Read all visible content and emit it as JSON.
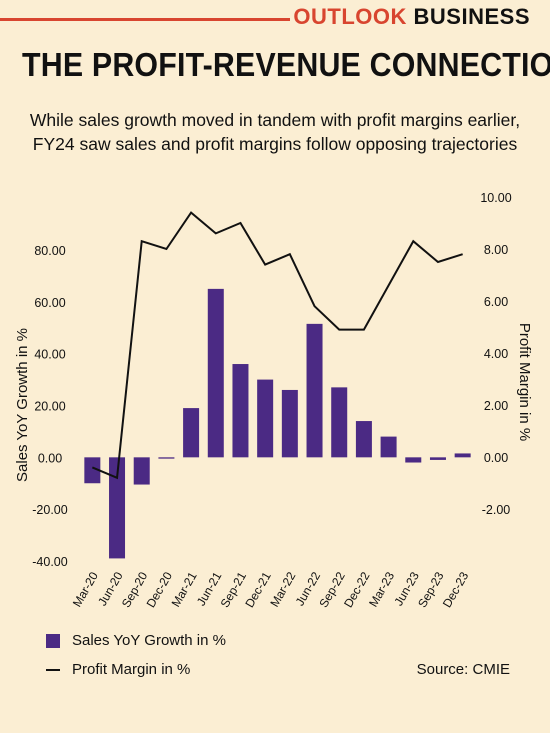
{
  "header": {
    "brand_part1": "OUTLOOK",
    "brand_part2": "BUSINESS",
    "title": "THE PROFIT-REVENUE CONNECTION",
    "subtitle_line1": "While sales growth moved in tandem with profit margins earlier,",
    "subtitle_line2": "FY24 saw sales and profit margins follow opposing trajectories"
  },
  "colors": {
    "background": "#fbeed3",
    "bar": "#4b2a84",
    "line": "#111111",
    "brand_red": "#d8452f"
  },
  "chart_data": {
    "type": "bar",
    "categories": [
      "Mar-20",
      "Jun-20",
      "Sep-20",
      "Dec-20",
      "Mar-21",
      "Jun-21",
      "Sep-21",
      "Dec-21",
      "Mar-22",
      "Jun-22",
      "Sep-22",
      "Dec-22",
      "Mar-23",
      "Jun-23",
      "Sep-23",
      "Dec-23"
    ],
    "series": [
      {
        "name": "Sales YoY Growth in %",
        "type": "bar",
        "axis": "left",
        "values": [
          -10,
          -39,
          -10.5,
          -0.5,
          19,
          65,
          36,
          30,
          26,
          51.5,
          27,
          14,
          8,
          -2,
          -1,
          1.5
        ]
      },
      {
        "name": "Profit Margin in %",
        "type": "line",
        "axis": "right",
        "values": [
          -0.4,
          -0.8,
          8.3,
          8.0,
          9.4,
          8.6,
          9.0,
          7.4,
          7.8,
          5.8,
          4.9,
          4.9,
          6.6,
          8.3,
          7.5,
          7.8
        ]
      }
    ],
    "ylabel": "Sales YoY Growth in %",
    "y2label": "Profit Margin in %",
    "ylim": [
      -40,
      80
    ],
    "y2lim": [
      -2,
      10
    ],
    "yticks": [
      "-40.00",
      "-20.00",
      "0.00",
      "20.00",
      "40.00",
      "60.00",
      "80.00"
    ],
    "y2ticks": [
      "-2.00",
      "0.00",
      "2.00",
      "4.00",
      "6.00",
      "8.00",
      "10.00"
    ],
    "grid": false,
    "legend_position": "bottom-left"
  },
  "legend": {
    "bar_label": "Sales YoY Growth in %",
    "line_label": "Profit Margin in %"
  },
  "source": "Source: CMIE"
}
